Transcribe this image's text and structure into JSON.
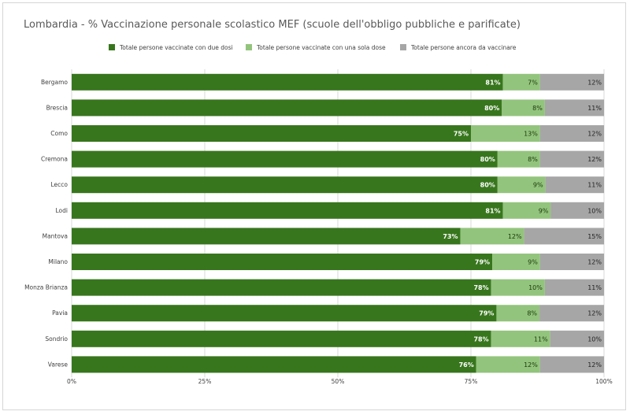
{
  "chart_data": {
    "type": "bar",
    "orientation": "horizontal",
    "stacked": "percent",
    "title": "Lombardia - % Vaccinazione personale scolastico MEF (scuole  dell'obbligo pubbliche e parificate)",
    "categories": [
      "Bergamo",
      "Brescia",
      "Como",
      "Cremona",
      "Lecco",
      "Lodi",
      "Mantova",
      "Milano",
      "Monza Brianza",
      "Pavia",
      "Sondrio",
      "Varese"
    ],
    "series": [
      {
        "name": "Totale persone vaccinate con due dosi",
        "color": "#38761d",
        "label_color": "#ffffff",
        "values": [
          81,
          80,
          75,
          80,
          80,
          81,
          73,
          79,
          78,
          79,
          78,
          76
        ],
        "labels": [
          "81%",
          "80%",
          "75%",
          "80%",
          "80%",
          "81%",
          "73%",
          "79%",
          "78%",
          "79%",
          "78%",
          "76%"
        ]
      },
      {
        "name": "Totale persone vaccinate con una sola dose",
        "color": "#93c47d",
        "label_color": "#1a3a0a",
        "values": [
          7,
          8,
          13,
          8,
          9,
          9,
          12,
          9,
          10,
          8,
          11,
          12
        ],
        "labels": [
          "7%",
          "8%",
          "13%",
          "8%",
          "9%",
          "9%",
          "12%",
          "9%",
          "10%",
          "8%",
          "11%",
          "12%"
        ]
      },
      {
        "name": "Totale persone ancora da vaccinare",
        "color": "#a6a6a6",
        "label_color": "#222222",
        "values": [
          12,
          11,
          12,
          12,
          11,
          10,
          15,
          12,
          11,
          12,
          10,
          12
        ],
        "labels": [
          "12%",
          "11%",
          "12%",
          "12%",
          "11%",
          "10%",
          "15%",
          "12%",
          "11%",
          "12%",
          "10%",
          "12%"
        ]
      }
    ],
    "xlim": [
      0,
      100
    ],
    "xticks": [
      "0%",
      "25%",
      "50%",
      "75%",
      "100%"
    ],
    "grid": "vertical",
    "legend_position": "top"
  }
}
